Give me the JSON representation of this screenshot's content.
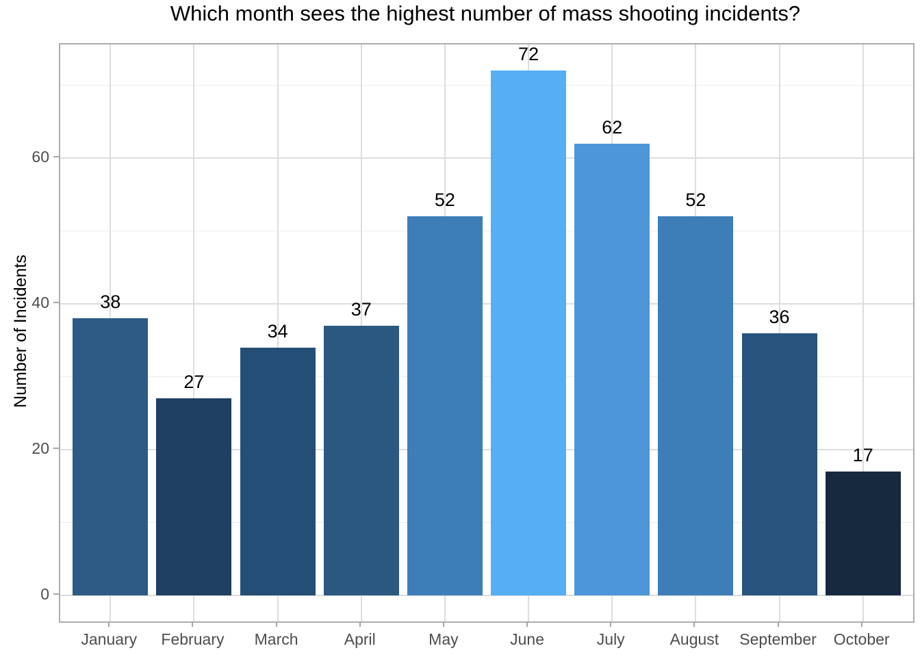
{
  "chart_data": {
    "type": "bar",
    "title": "Which month sees the highest number of mass shooting incidents?",
    "xlabel": "",
    "ylabel": "Number of Incidents",
    "categories": [
      "January",
      "February",
      "March",
      "April",
      "May",
      "June",
      "July",
      "August",
      "September",
      "October"
    ],
    "values": [
      38,
      27,
      34,
      37,
      52,
      72,
      62,
      52,
      36,
      17
    ],
    "bar_colors": [
      "#2D5B85",
      "#1F4060",
      "#254E76",
      "#2B5881",
      "#3E7EB8",
      "#56AEF4",
      "#4C96D9",
      "#3E7EB8",
      "#29547D",
      "#16293F"
    ],
    "y_axis": {
      "tick_values": [
        0,
        20,
        40,
        60
      ],
      "tick_labels": [
        "0",
        "20",
        "40",
        "60"
      ],
      "minor_gridline_values": [
        10,
        30,
        50,
        70
      ],
      "ylim": [
        0,
        72
      ],
      "expand_frac": 0.05
    },
    "grid": true,
    "legend_position": "none",
    "value_labels_shown": true
  },
  "style": {
    "background": "#FFFFFF",
    "panel_background": "#FFFFFF",
    "panel_border": "#ADADAD",
    "grid_major": "#DDDDDD",
    "grid_minor": "#EBEBEB",
    "tick_mark": "#A6A6A6",
    "axis_text": "#4D4D4D",
    "title_color": "#000000",
    "value_label_color": "#000000",
    "lowest_value_color": "#16293F",
    "highest_value_color": "#56AEF4"
  }
}
